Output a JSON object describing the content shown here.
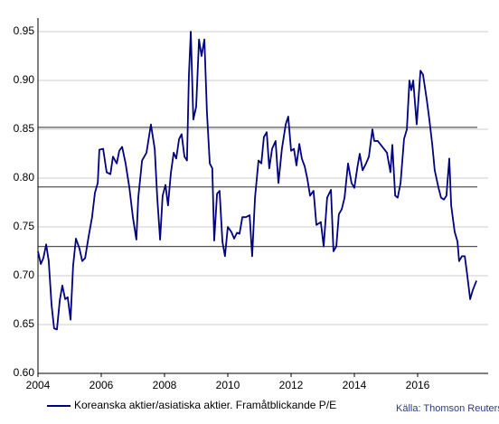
{
  "chart_data": {
    "type": "line",
    "source": "Källa: Thomson Reuters",
    "legend": "bottom-left",
    "grid": true,
    "xlim": [
      2004,
      2018
    ],
    "ylim": [
      0.6,
      0.95
    ],
    "xticks": [
      2004,
      2006,
      2008,
      2010,
      2012,
      2014,
      2016
    ],
    "yticks": [
      {
        "value": 0.6,
        "label": "0.60"
      },
      0.65,
      {
        "value": 0.7,
        "label": "0.70"
      },
      0.75,
      {
        "value": 0.8,
        "label": "0.80"
      },
      0.85,
      {
        "value": 0.9,
        "label": "0.90"
      },
      0.95
    ],
    "reference_lines": {
      "values": [
        0.852,
        0.791,
        0.73
      ],
      "color": "#555555"
    },
    "x": [
      2004.0,
      2004.09,
      2004.17,
      2004.26,
      2004.34,
      2004.43,
      2004.51,
      2004.6,
      2004.69,
      2004.77,
      2004.86,
      2004.94,
      2005.03,
      2005.11,
      2005.2,
      2005.31,
      2005.4,
      2005.49,
      2005.6,
      2005.71,
      2005.8,
      2005.89,
      2005.94,
      2006.06,
      2006.17,
      2006.29,
      2006.37,
      2006.49,
      2006.57,
      2006.66,
      2006.77,
      2006.89,
      2007.0,
      2007.11,
      2007.17,
      2007.29,
      2007.43,
      2007.57,
      2007.69,
      2007.77,
      2007.86,
      2007.94,
      2008.03,
      2008.11,
      2008.2,
      2008.29,
      2008.37,
      2008.46,
      2008.54,
      2008.63,
      2008.71,
      2008.77,
      2008.83,
      2008.91,
      2009.0,
      2009.09,
      2009.17,
      2009.26,
      2009.34,
      2009.43,
      2009.51,
      2009.57,
      2009.66,
      2009.74,
      2009.83,
      2009.91,
      2010.0,
      2010.11,
      2010.2,
      2010.29,
      2010.37,
      2010.46,
      2010.57,
      2010.69,
      2010.77,
      2010.86,
      2010.97,
      2011.06,
      2011.14,
      2011.23,
      2011.31,
      2011.4,
      2011.51,
      2011.6,
      2011.71,
      2011.83,
      2011.91,
      2012.0,
      2012.09,
      2012.17,
      2012.26,
      2012.34,
      2012.43,
      2012.51,
      2012.6,
      2012.71,
      2012.8,
      2012.94,
      2013.03,
      2013.14,
      2013.26,
      2013.34,
      2013.43,
      2013.51,
      2013.6,
      2013.69,
      2013.8,
      2013.91,
      2014.0,
      2014.09,
      2014.17,
      2014.26,
      2014.37,
      2014.46,
      2014.57,
      2014.63,
      2014.74,
      2014.86,
      2015.03,
      2015.14,
      2015.2,
      2015.29,
      2015.37,
      2015.46,
      2015.57,
      2015.66,
      2015.74,
      2015.8,
      2015.86,
      2015.97,
      2016.09,
      2016.17,
      2016.29,
      2016.37,
      2016.46,
      2016.54,
      2016.66,
      2016.74,
      2016.83,
      2016.91,
      2017.0,
      2017.06,
      2017.17,
      2017.26,
      2017.31,
      2017.4,
      2017.49,
      2017.57,
      2017.66,
      2017.74,
      2017.86
    ],
    "series": [
      {
        "name": "Koreanska aktier/asiatiska aktier. Framåtblickande P/E",
        "color": "#000080",
        "values": [
          0.725,
          0.712,
          0.718,
          0.732,
          0.715,
          0.67,
          0.646,
          0.645,
          0.675,
          0.69,
          0.676,
          0.678,
          0.655,
          0.71,
          0.738,
          0.728,
          0.715,
          0.718,
          0.74,
          0.76,
          0.785,
          0.795,
          0.829,
          0.83,
          0.806,
          0.804,
          0.822,
          0.815,
          0.828,
          0.832,
          0.815,
          0.79,
          0.76,
          0.737,
          0.78,
          0.818,
          0.826,
          0.855,
          0.83,
          0.78,
          0.737,
          0.782,
          0.793,
          0.772,
          0.805,
          0.826,
          0.82,
          0.84,
          0.845,
          0.822,
          0.818,
          0.905,
          0.95,
          0.86,
          0.873,
          0.942,
          0.925,
          0.942,
          0.868,
          0.815,
          0.81,
          0.736,
          0.784,
          0.787,
          0.735,
          0.72,
          0.75,
          0.745,
          0.738,
          0.744,
          0.743,
          0.76,
          0.76,
          0.762,
          0.72,
          0.78,
          0.818,
          0.815,
          0.842,
          0.847,
          0.81,
          0.83,
          0.838,
          0.795,
          0.83,
          0.855,
          0.863,
          0.828,
          0.83,
          0.813,
          0.835,
          0.82,
          0.812,
          0.8,
          0.782,
          0.787,
          0.752,
          0.755,
          0.73,
          0.78,
          0.788,
          0.725,
          0.73,
          0.763,
          0.768,
          0.78,
          0.815,
          0.795,
          0.79,
          0.81,
          0.825,
          0.808,
          0.815,
          0.822,
          0.85,
          0.838,
          0.838,
          0.833,
          0.826,
          0.806,
          0.834,
          0.782,
          0.78,
          0.795,
          0.84,
          0.85,
          0.9,
          0.89,
          0.9,
          0.855,
          0.91,
          0.906,
          0.88,
          0.86,
          0.835,
          0.808,
          0.79,
          0.78,
          0.778,
          0.782,
          0.82,
          0.772,
          0.745,
          0.735,
          0.715,
          0.72,
          0.72,
          0.7,
          0.676,
          0.685,
          0.695
        ]
      }
    ]
  }
}
